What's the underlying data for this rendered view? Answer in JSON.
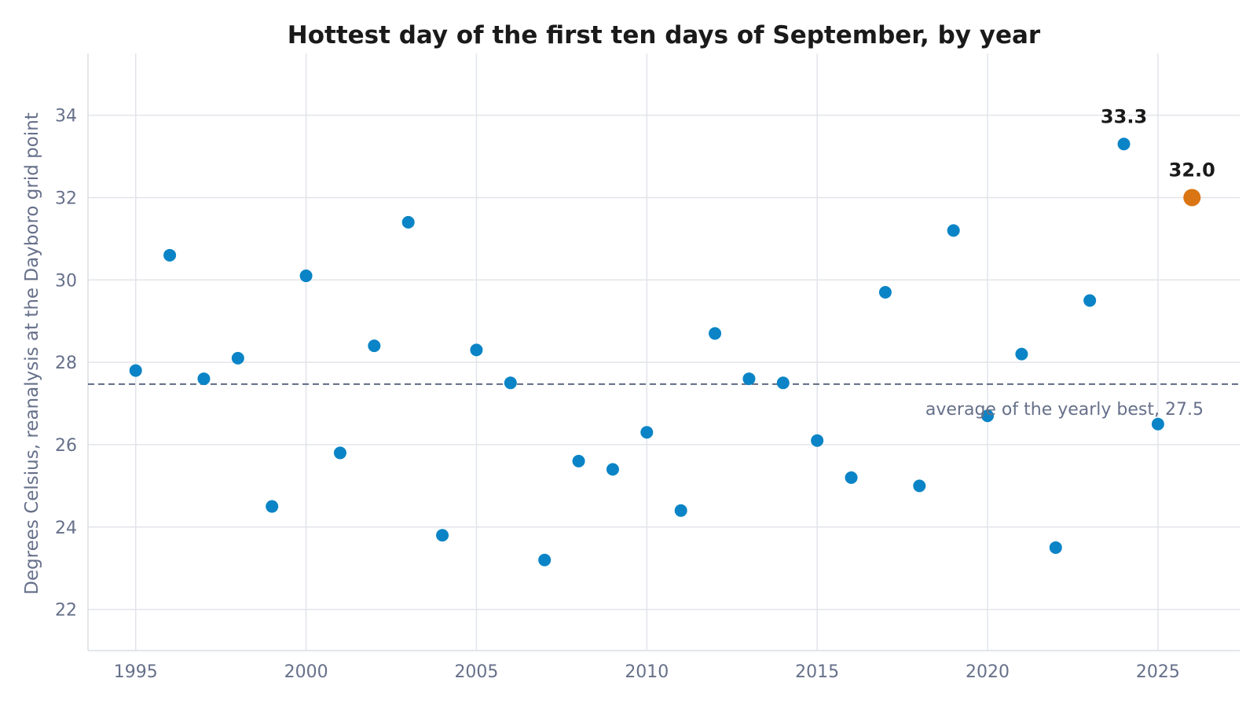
{
  "chart_data": {
    "type": "scatter",
    "title": "Hottest day of the first ten days of September, by year",
    "xlabel": "",
    "ylabel": "Degrees Celsius, reanalysis at the Dayboro grid point",
    "xlim": [
      1993.6,
      2027.4
    ],
    "ylim": [
      21.0,
      35.5
    ],
    "xticks": [
      "1995",
      "2000",
      "2005",
      "2010",
      "2015",
      "2020",
      "2025"
    ],
    "yticks": [
      "22",
      "24",
      "26",
      "28",
      "30",
      "32",
      "34"
    ],
    "grid": true,
    "colors": {
      "points": "#0a84c6",
      "highlight": "#d97512",
      "mean_line": "#5f6b85",
      "grid": "#e2e4ea"
    },
    "x": [
      1995,
      1996,
      1997,
      1998,
      1999,
      2000,
      2001,
      2002,
      2003,
      2004,
      2005,
      2006,
      2007,
      2008,
      2009,
      2010,
      2011,
      2012,
      2013,
      2014,
      2015,
      2016,
      2017,
      2018,
      2019,
      2020,
      2021,
      2022,
      2023,
      2024,
      2025
    ],
    "y": [
      27.8,
      30.6,
      27.6,
      28.1,
      24.5,
      30.1,
      25.8,
      28.4,
      31.4,
      23.8,
      28.3,
      27.5,
      23.2,
      25.6,
      25.4,
      26.3,
      24.4,
      28.7,
      27.6,
      27.5,
      26.1,
      25.2,
      29.7,
      25.0,
      31.2,
      26.7,
      28.2,
      23.5,
      29.5,
      33.3,
      26.5
    ],
    "highlight_point": {
      "x": 2026,
      "y": 32.0
    },
    "mean_value": 27.47,
    "mean_label": "average of the yearly best, 27.5",
    "data_labels": [
      {
        "x": 2024,
        "y": 33.3,
        "text": "33.3"
      },
      {
        "x": 2026,
        "y": 32.0,
        "text": "32.0"
      }
    ]
  }
}
